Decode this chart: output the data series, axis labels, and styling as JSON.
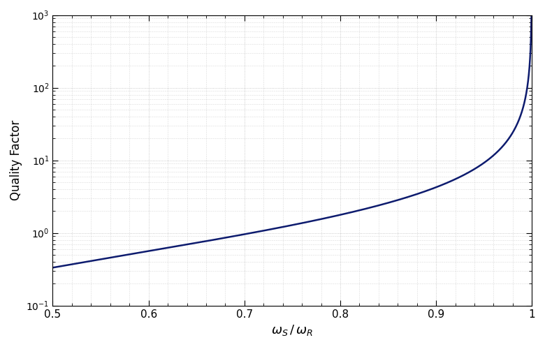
{
  "xlabel": "$\\omega_S\\,/\\,\\omega_R$",
  "ylabel": "Quality Factor",
  "xlim": [
    0.5,
    1.0
  ],
  "ylim": [
    0.1,
    1000
  ],
  "line_color": "#0d1b6e",
  "line_width": 1.8,
  "background_color": "#ffffff",
  "grid_color": "#bbbbbb",
  "xtick_labels": [
    "0.5",
    "0.6",
    "0.7",
    "0.8",
    "0.9",
    "1"
  ],
  "xticks": [
    0.5,
    0.6,
    0.7,
    0.8,
    0.9,
    1.0
  ],
  "figsize": [
    7.8,
    4.97
  ],
  "dpi": 100
}
